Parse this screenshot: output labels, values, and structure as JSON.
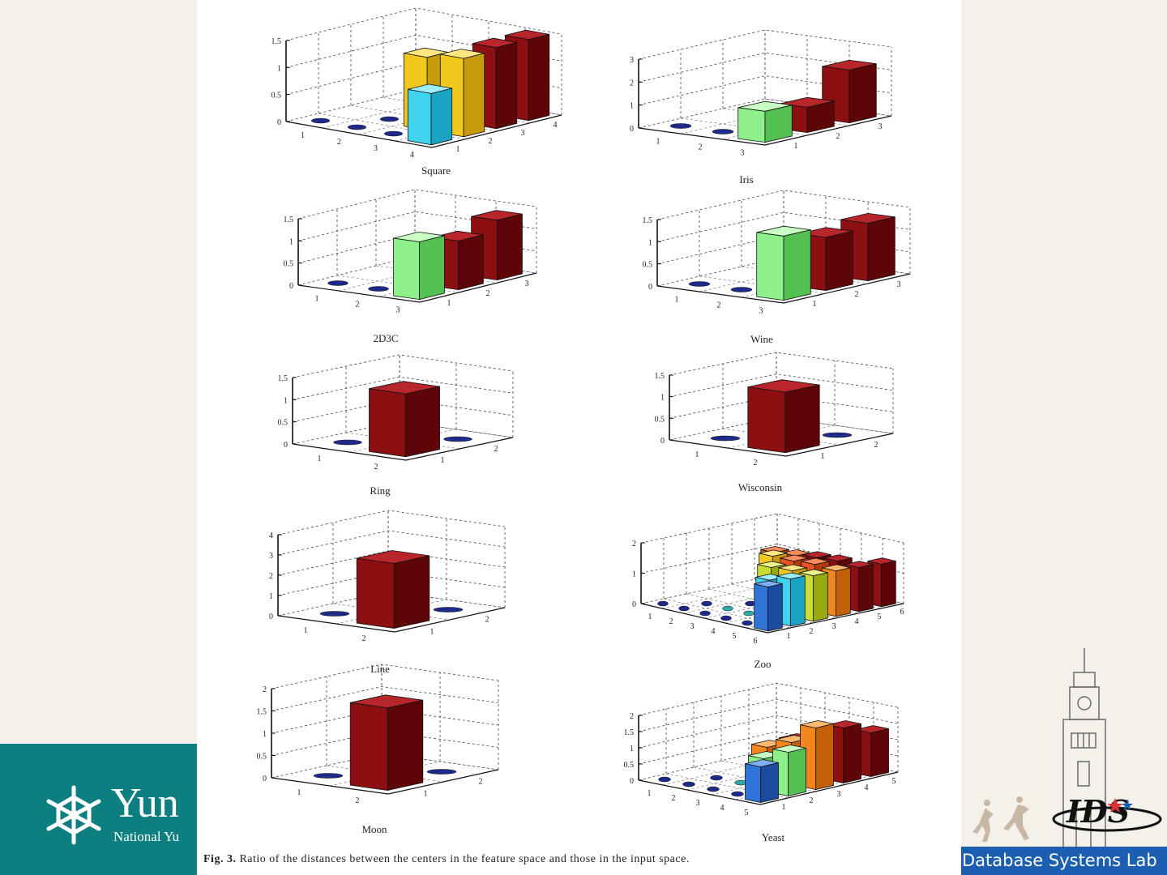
{
  "logo": {
    "name_big": "Yun",
    "name_small": "National Yu"
  },
  "lab": {
    "label": "Database Systems Lab",
    "logo_text": "IDS"
  },
  "caption": {
    "fig_label": "Fig. 3.",
    "text": "Ratio of the distances between the centers in the feature space and those in the input space."
  },
  "colors": {
    "teal_band": "#0d7f80",
    "lab_blue": "#1c5fb0"
  },
  "chart_data": [
    {
      "type": "bar3d",
      "title": "Square",
      "zticks": [
        "0",
        "0.5",
        "1",
        "1.5"
      ],
      "zlim": [
        0,
        1.5
      ],
      "xticks": [
        "1",
        "2",
        "3",
        "4"
      ],
      "yticks": [
        "1",
        "2",
        "3",
        "4"
      ],
      "bars": [
        {
          "x": 4,
          "y": 1,
          "v": 0.95,
          "c": "cyan"
        },
        {
          "x": 4,
          "y": 2,
          "v": 1.45,
          "c": "yellow"
        },
        {
          "x": 4,
          "y": 3,
          "v": 1.5,
          "c": "darkred"
        },
        {
          "x": 4,
          "y": 4,
          "v": 1.5,
          "c": "darkred"
        },
        {
          "x": 3,
          "y": 2,
          "v": 1.35,
          "c": "yellow"
        },
        {
          "x": 3,
          "y": 4,
          "v": 1.0,
          "c": "darkred"
        }
      ]
    },
    {
      "type": "bar3d",
      "title": "Iris",
      "zticks": [
        "0",
        "1",
        "2",
        "3"
      ],
      "zlim": [
        0,
        3
      ],
      "xticks": [
        "1",
        "2",
        "3"
      ],
      "yticks": [
        "1",
        "2",
        "3"
      ],
      "bars": [
        {
          "x": 3,
          "y": 1,
          "v": 1.35,
          "c": "lightgreen"
        },
        {
          "x": 3,
          "y": 2,
          "v": 1.1,
          "c": "darkred"
        },
        {
          "x": 3,
          "y": 3,
          "v": 2.3,
          "c": "darkred"
        }
      ]
    },
    {
      "type": "bar3d",
      "title": "2D3C",
      "zticks": [
        "0",
        "0.5",
        "1",
        "1.5"
      ],
      "zlim": [
        0,
        1.5
      ],
      "xticks": [
        "1",
        "2",
        "3"
      ],
      "yticks": [
        "1",
        "2",
        "3"
      ],
      "bars": [
        {
          "x": 3,
          "y": 1,
          "v": 1.3,
          "c": "lightgreen"
        },
        {
          "x": 3,
          "y": 2,
          "v": 1.1,
          "c": "darkred"
        },
        {
          "x": 3,
          "y": 3,
          "v": 1.35,
          "c": "darkred"
        }
      ]
    },
    {
      "type": "bar3d",
      "title": "Wine",
      "zticks": [
        "0",
        "0.5",
        "1",
        "1.5"
      ],
      "zlim": [
        0,
        1.5
      ],
      "xticks": [
        "1",
        "2",
        "3"
      ],
      "yticks": [
        "1",
        "2",
        "3"
      ],
      "bars": [
        {
          "x": 3,
          "y": 1,
          "v": 1.45,
          "c": "lightgreen"
        },
        {
          "x": 3,
          "y": 2,
          "v": 1.2,
          "c": "darkred"
        },
        {
          "x": 3,
          "y": 3,
          "v": 1.3,
          "c": "darkred"
        }
      ]
    },
    {
      "type": "bar3d",
      "title": "Ring",
      "zticks": [
        "0",
        "0.5",
        "1",
        "1.5"
      ],
      "zlim": [
        0,
        1.5
      ],
      "xticks": [
        "1",
        "2"
      ],
      "yticks": [
        "1",
        "2"
      ],
      "bars": [
        {
          "x": 2,
          "y": 1,
          "v": 1.42,
          "c": "darkred"
        }
      ]
    },
    {
      "type": "bar3d",
      "title": "Wisconsin",
      "zticks": [
        "0",
        "0.5",
        "1",
        "1.5"
      ],
      "zlim": [
        0,
        1.5
      ],
      "xticks": [
        "1",
        "2"
      ],
      "yticks": [
        "1",
        "2"
      ],
      "bars": [
        {
          "x": 2,
          "y": 1,
          "v": 1.4,
          "c": "darkred"
        }
      ]
    },
    {
      "type": "bar3d",
      "title": "Line",
      "zticks": [
        "0",
        "1",
        "2",
        "3",
        "4"
      ],
      "zlim": [
        0,
        4
      ],
      "xticks": [
        "1",
        "2"
      ],
      "yticks": [
        "1",
        "2"
      ],
      "bars": [
        {
          "x": 2,
          "y": 1,
          "v": 3.2,
          "c": "darkred"
        }
      ]
    },
    {
      "type": "bar3d",
      "title": "Zoo",
      "zticks": [
        "0",
        "1",
        "2"
      ],
      "zlim": [
        0,
        2
      ],
      "xticks": [
        "1",
        "2",
        "3",
        "4",
        "5",
        "6"
      ],
      "yticks": [
        "1",
        "2",
        "3",
        "4",
        "5",
        "6"
      ],
      "bars": [
        {
          "x": 6,
          "y": 1,
          "v": 1.45,
          "c": "blue"
        },
        {
          "x": 6,
          "y": 2,
          "v": 1.55,
          "c": "cyan"
        },
        {
          "x": 6,
          "y": 3,
          "v": 1.5,
          "c": "yellowgreen"
        },
        {
          "x": 6,
          "y": 4,
          "v": 1.5,
          "c": "orange"
        },
        {
          "x": 6,
          "y": 5,
          "v": 1.45,
          "c": "darkred"
        },
        {
          "x": 6,
          "y": 6,
          "v": 1.4,
          "c": "darkred"
        },
        {
          "x": 5,
          "y": 2,
          "v": 1.35,
          "c": "cyan"
        },
        {
          "x": 5,
          "y": 3,
          "v": 1.5,
          "c": "yellow"
        },
        {
          "x": 5,
          "y": 4,
          "v": 1.55,
          "c": "orangered"
        },
        {
          "x": 5,
          "y": 5,
          "v": 1.5,
          "c": "darkred"
        },
        {
          "x": 4,
          "y": 3,
          "v": 1.45,
          "c": "yellowgreen"
        },
        {
          "x": 4,
          "y": 4,
          "v": 1.5,
          "c": "orangered"
        },
        {
          "x": 4,
          "y": 5,
          "v": 1.45,
          "c": "darkred"
        },
        {
          "x": 3,
          "y": 4,
          "v": 1.5,
          "c": "yellow"
        },
        {
          "x": 3,
          "y": 5,
          "v": 1.35,
          "c": "orangered"
        },
        {
          "x": 2,
          "y": 5,
          "v": 1.3,
          "c": "orangered"
        }
      ]
    },
    {
      "type": "bar3d",
      "title": "Moon",
      "zticks": [
        "0",
        "0.5",
        "1",
        "1.5",
        "2"
      ],
      "zlim": [
        0,
        2
      ],
      "xticks": [
        "1",
        "2"
      ],
      "yticks": [
        "1",
        "2"
      ],
      "bars": [
        {
          "x": 2,
          "y": 1,
          "v": 1.85,
          "c": "darkred"
        }
      ]
    },
    {
      "type": "bar3d",
      "title": "Yeast",
      "zticks": [
        "0",
        "0.5",
        "1",
        "1.5",
        "2"
      ],
      "zlim": [
        0,
        2
      ],
      "xticks": [
        "1",
        "2",
        "3",
        "4",
        "5"
      ],
      "yticks": [
        "1",
        "2",
        "3",
        "4",
        "5"
      ],
      "bars": [
        {
          "x": 5,
          "y": 1,
          "v": 1.1,
          "c": "blue"
        },
        {
          "x": 5,
          "y": 2,
          "v": 1.35,
          "c": "lightgreen"
        },
        {
          "x": 5,
          "y": 3,
          "v": 1.9,
          "c": "orange"
        },
        {
          "x": 5,
          "y": 4,
          "v": 1.7,
          "c": "darkred"
        },
        {
          "x": 5,
          "y": 5,
          "v": 1.35,
          "c": "darkred"
        },
        {
          "x": 4,
          "y": 2,
          "v": 1.0,
          "c": "lightgreen"
        },
        {
          "x": 4,
          "y": 3,
          "v": 1.3,
          "c": "orange"
        },
        {
          "x": 4,
          "y": 4,
          "v": 1.3,
          "c": "darkred"
        },
        {
          "x": 3,
          "y": 3,
          "v": 1.0,
          "c": "orange"
        },
        {
          "x": 3,
          "y": 4,
          "v": 1.0,
          "c": "darkred"
        }
      ]
    }
  ]
}
